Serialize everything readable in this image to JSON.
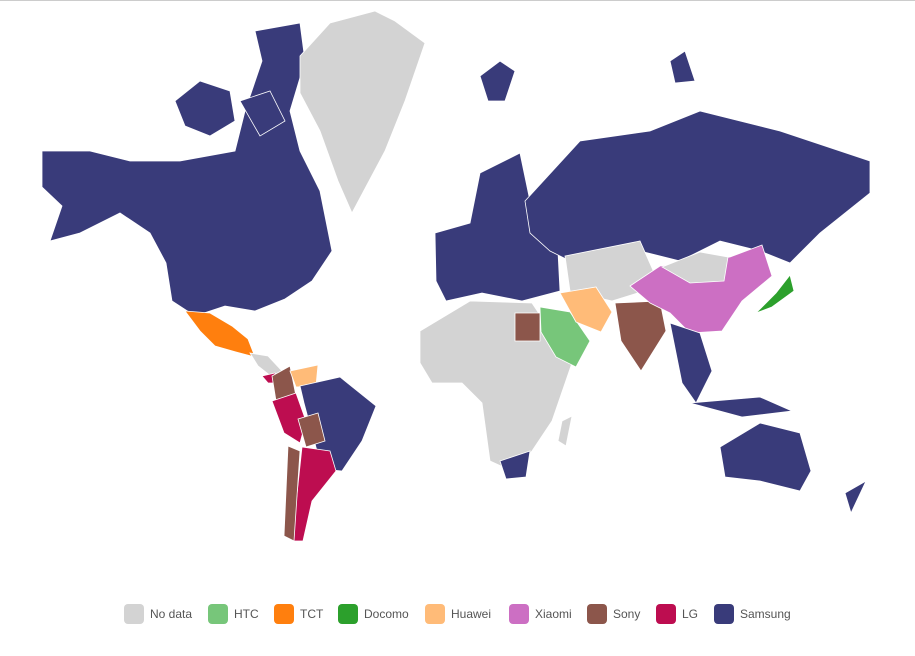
{
  "legend": {
    "items": [
      {
        "label": "No data",
        "color": "#d3d3d3"
      },
      {
        "label": "HTC",
        "color": "#77c67a"
      },
      {
        "label": "TCT",
        "color": "#ff7f0e"
      },
      {
        "label": "Docomo",
        "color": "#2ca02c"
      },
      {
        "label": "Huawei",
        "color": "#ffbb78"
      },
      {
        "label": "Xiaomi",
        "color": "#cc6fc3"
      },
      {
        "label": "Sony",
        "color": "#8c564b"
      },
      {
        "label": "LG",
        "color": "#bd0d50"
      },
      {
        "label": "Samsung",
        "color": "#393b7a"
      }
    ]
  }
}
